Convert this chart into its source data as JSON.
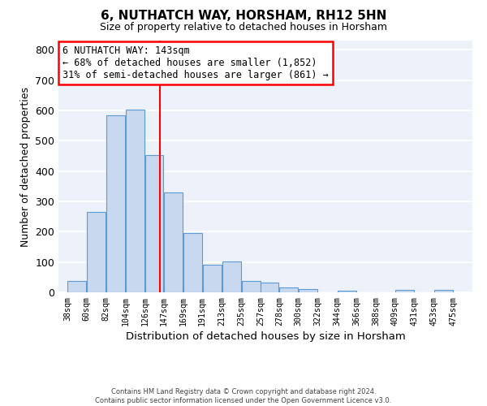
{
  "title": "6, NUTHATCH WAY, HORSHAM, RH12 5HN",
  "subtitle": "Size of property relative to detached houses in Horsham",
  "xlabel": "Distribution of detached houses by size in Horsham",
  "ylabel": "Number of detached properties",
  "bar_left_edges": [
    38,
    60,
    82,
    104,
    126,
    147,
    169,
    191,
    213,
    235,
    257,
    278,
    300,
    322,
    344,
    366,
    388,
    409,
    431,
    453
  ],
  "bar_heights": [
    38,
    265,
    585,
    602,
    453,
    330,
    196,
    90,
    101,
    38,
    32,
    15,
    11,
    0,
    5,
    0,
    0,
    8,
    0,
    8
  ],
  "bar_widths": [
    22,
    22,
    22,
    22,
    21,
    22,
    22,
    22,
    22,
    22,
    21,
    22,
    22,
    22,
    22,
    22,
    21,
    22,
    22,
    22
  ],
  "bar_color": "#c8d9ef",
  "bar_edgecolor": "#5b9bd5",
  "marker_x": 143,
  "marker_color": "red",
  "ylim": [
    0,
    830
  ],
  "xlim": [
    28,
    497
  ],
  "xtick_labels": [
    "38sqm",
    "60sqm",
    "82sqm",
    "104sqm",
    "126sqm",
    "147sqm",
    "169sqm",
    "191sqm",
    "213sqm",
    "235sqm",
    "257sqm",
    "278sqm",
    "300sqm",
    "322sqm",
    "344sqm",
    "366sqm",
    "388sqm",
    "409sqm",
    "431sqm",
    "453sqm",
    "475sqm"
  ],
  "xtick_positions": [
    38,
    60,
    82,
    104,
    126,
    147,
    169,
    191,
    213,
    235,
    257,
    278,
    300,
    322,
    344,
    366,
    388,
    409,
    431,
    453,
    475
  ],
  "ytick_positions": [
    0,
    100,
    200,
    300,
    400,
    500,
    600,
    700,
    800
  ],
  "annotation_lines": [
    "6 NUTHATCH WAY: 143sqm",
    "← 68% of detached houses are smaller (1,852)",
    "31% of semi-detached houses are larger (861) →"
  ],
  "bg_color": "#edf2fa",
  "grid_color": "white",
  "footer_line1": "Contains HM Land Registry data © Crown copyright and database right 2024.",
  "footer_line2": "Contains public sector information licensed under the Open Government Licence v3.0."
}
